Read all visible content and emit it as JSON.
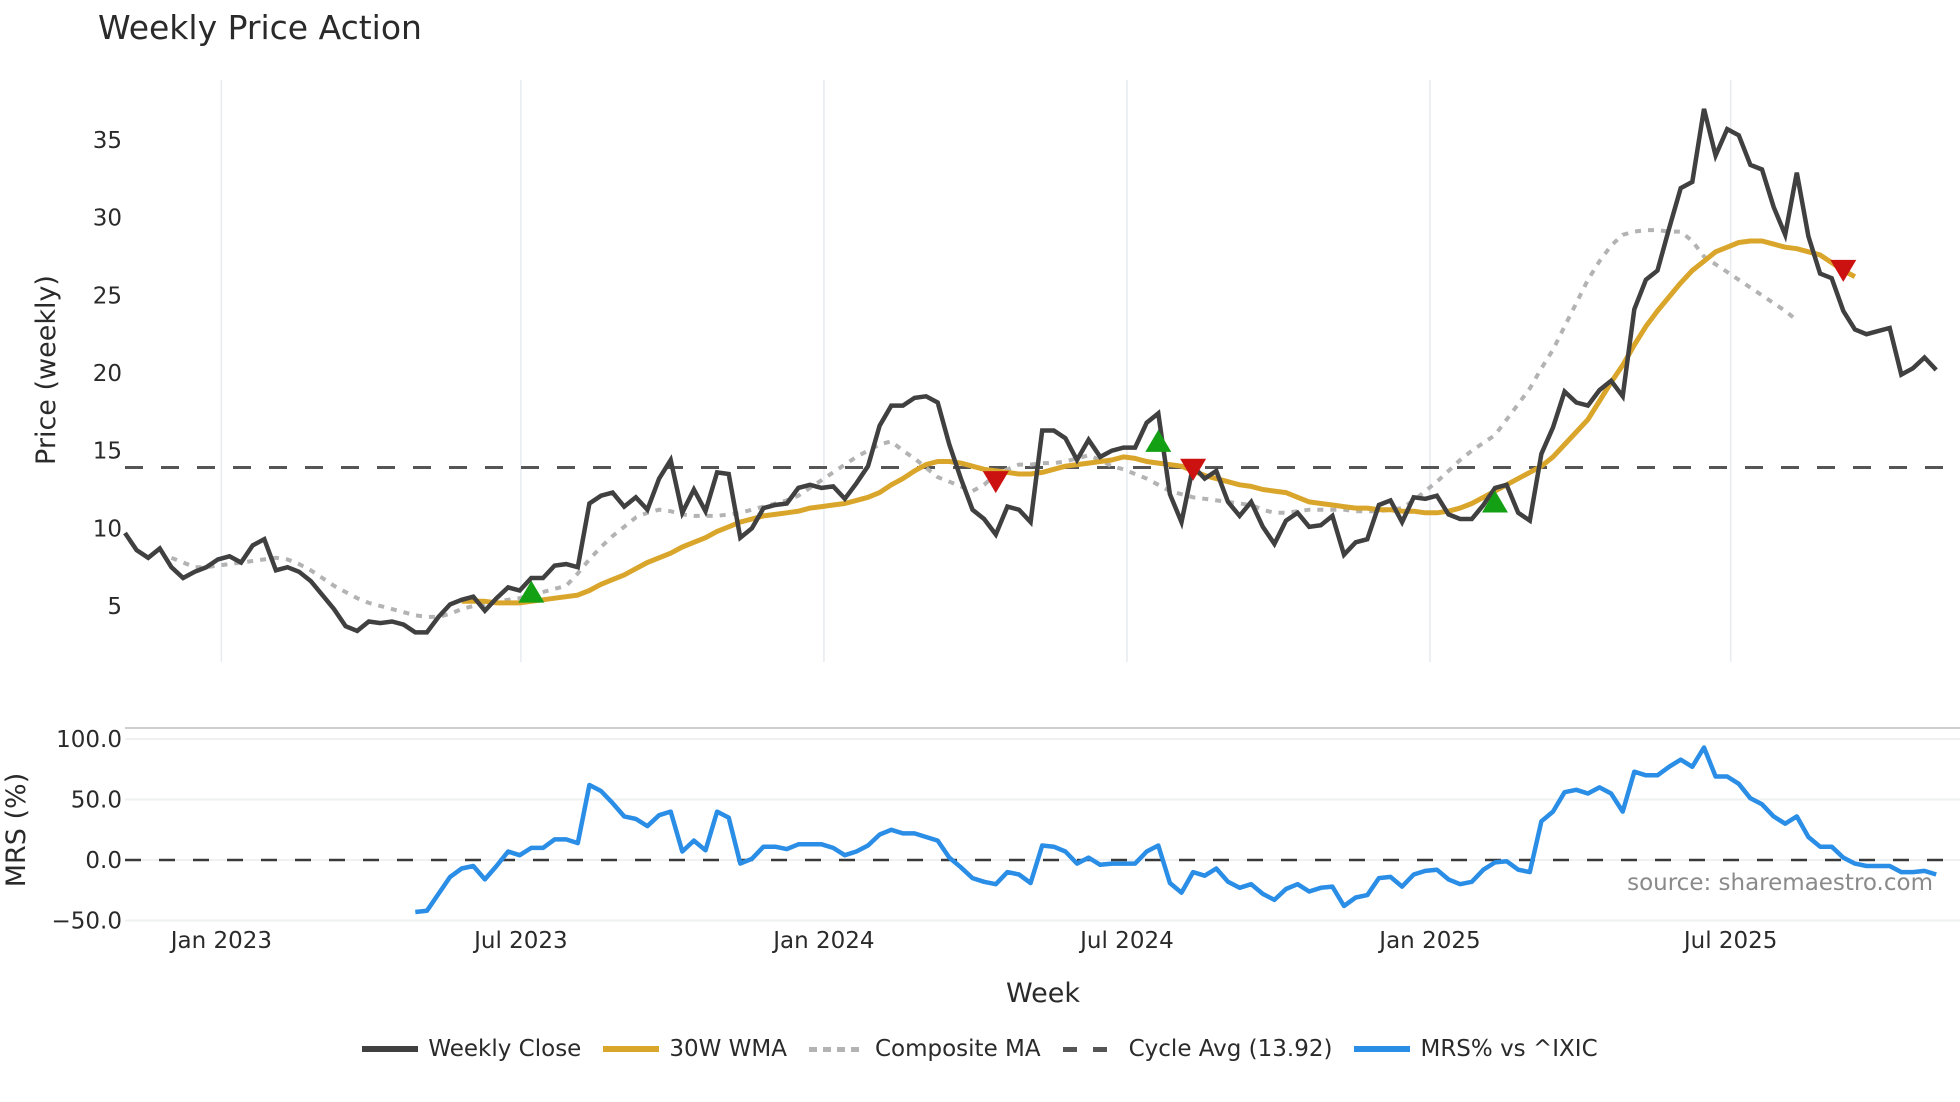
{
  "title": "Weekly Price Action",
  "source_note": "source: sharemaestro.com",
  "colors": {
    "close": "#404040",
    "wma": "#d9a62b",
    "composite": "#b3b3b3",
    "cycle": "#555555",
    "mrs": "#2a8de6",
    "buy": "#14a014",
    "sell": "#cc1111",
    "grid": "#e6ebef"
  },
  "legend": [
    {
      "key": "close",
      "label": "Weekly Close"
    },
    {
      "key": "wma",
      "label": "30W WMA"
    },
    {
      "key": "composite",
      "label": "Composite MA"
    },
    {
      "key": "cycle",
      "label": "Cycle Avg (13.92)"
    },
    {
      "key": "mrs",
      "label": "MRS% vs ^IXIC"
    }
  ],
  "chart_data": [
    {
      "type": "line",
      "title": "Weekly Price Action",
      "xlabel": "Week",
      "ylabel": "Price (weekly)",
      "x_tick_labels": [
        "Jan 2023",
        "Jul 2023",
        "Jan 2024",
        "Jul 2024",
        "Jan 2025",
        "Jul 2025"
      ],
      "x_tick_week_index": [
        8.3,
        34.1,
        60.2,
        86.3,
        112.4,
        138.3
      ],
      "y_ticks": [
        5,
        10,
        15,
        20,
        25,
        30,
        35
      ],
      "ylim": [
        1.5,
        38.5
      ],
      "grid": "vertical",
      "legend_position": "bottom",
      "cycle_avg": 13.92,
      "series": [
        {
          "name": "Weekly Close",
          "start_index": 0,
          "values": [
            9.7,
            8.6,
            8.1,
            8.7,
            7.5,
            6.8,
            7.2,
            7.5,
            8.0,
            8.2,
            7.8,
            8.9,
            9.3,
            7.3,
            7.5,
            7.2,
            6.6,
            5.7,
            4.8,
            3.7,
            3.4,
            4.0,
            3.9,
            4.0,
            3.8,
            3.3,
            3.3,
            4.3,
            5.1,
            5.4,
            5.6,
            4.7,
            5.5,
            6.2,
            6.0,
            6.8,
            6.8,
            7.6,
            7.7,
            7.5,
            11.6,
            12.1,
            12.3,
            11.4,
            12.0,
            11.2,
            13.2,
            14.4,
            11.0,
            12.5,
            11.1,
            13.6,
            13.5,
            9.4,
            10.0,
            11.3,
            11.5,
            11.6,
            12.6,
            12.8,
            12.6,
            12.7,
            11.9,
            12.9,
            14.0,
            16.6,
            17.9,
            17.9,
            18.4,
            18.5,
            18.1,
            15.4,
            13.2,
            11.2,
            10.6,
            9.6,
            11.4,
            11.2,
            10.4,
            16.3,
            16.3,
            15.8,
            14.4,
            15.7,
            14.6,
            15.0,
            15.2,
            15.2,
            16.8,
            17.4,
            12.2,
            10.4,
            14.0,
            13.2,
            13.7,
            11.7,
            10.8,
            11.7,
            10.1,
            9.0,
            10.5,
            11.0,
            10.1,
            10.2,
            10.8,
            8.3,
            9.1,
            9.3,
            11.5,
            11.8,
            10.4,
            12.0,
            11.9,
            12.1,
            10.9,
            10.6,
            10.6,
            11.5,
            12.6,
            12.8,
            11.0,
            10.5,
            14.8,
            16.5,
            18.8,
            18.1,
            17.9,
            18.9,
            19.5,
            18.5,
            24.1,
            26.0,
            26.6,
            29.3,
            31.9,
            32.3,
            37.0,
            34.0,
            35.7,
            35.3,
            33.4,
            33.1,
            30.7,
            28.9,
            32.9,
            28.8,
            26.4,
            26.1,
            24.0,
            22.8,
            22.5,
            22.7,
            22.9,
            19.9,
            20.3,
            21.0,
            20.2
          ]
        },
        {
          "name": "30W WMA",
          "start_index": 29,
          "values": [
            5.3,
            5.3,
            5.3,
            5.2,
            5.2,
            5.2,
            5.3,
            5.4,
            5.5,
            5.6,
            5.7,
            6.0,
            6.4,
            6.7,
            7.0,
            7.4,
            7.8,
            8.1,
            8.4,
            8.8,
            9.1,
            9.4,
            9.8,
            10.1,
            10.4,
            10.6,
            10.8,
            10.9,
            11.0,
            11.1,
            11.3,
            11.4,
            11.5,
            11.6,
            11.8,
            12.0,
            12.3,
            12.8,
            13.2,
            13.7,
            14.1,
            14.3,
            14.3,
            14.2,
            14.0,
            13.8,
            13.7,
            13.6,
            13.5,
            13.5,
            13.6,
            13.8,
            14.0,
            14.1,
            14.2,
            14.3,
            14.4,
            14.6,
            14.5,
            14.3,
            14.2,
            14.1,
            14.0,
            13.7,
            13.4,
            13.2,
            13.0,
            12.8,
            12.7,
            12.5,
            12.4,
            12.3,
            12.0,
            11.7,
            11.6,
            11.5,
            11.4,
            11.3,
            11.3,
            11.2,
            11.2,
            11.1,
            11.1,
            11.0,
            11.0,
            11.1,
            11.3,
            11.6,
            12.0,
            12.4,
            12.8,
            13.2,
            13.6,
            14.0,
            14.6,
            15.4,
            16.2,
            17.0,
            18.2,
            19.4,
            20.5,
            21.8,
            23.0,
            24.0,
            24.9,
            25.8,
            26.6,
            27.2,
            27.8,
            28.1,
            28.4,
            28.5,
            28.5,
            28.3,
            28.1,
            28.0,
            27.8,
            27.6,
            27.1,
            26.6,
            26.2
          ]
        },
        {
          "name": "Composite MA",
          "start_index": 4,
          "values": [
            8.1,
            7.8,
            7.5,
            7.5,
            7.6,
            7.7,
            7.8,
            7.9,
            8.0,
            8.1,
            8.0,
            7.7,
            7.3,
            6.8,
            6.3,
            5.9,
            5.5,
            5.2,
            5.0,
            4.8,
            4.6,
            4.4,
            4.3,
            4.3,
            4.5,
            4.8,
            5.0,
            5.1,
            5.3,
            5.4,
            5.5,
            5.7,
            5.9,
            6.1,
            6.3,
            7.1,
            8.0,
            8.8,
            9.5,
            10.1,
            10.7,
            11.0,
            11.2,
            11.1,
            10.9,
            10.8,
            10.8,
            10.8,
            10.9,
            11.0,
            11.2,
            11.4,
            11.6,
            11.8,
            12.1,
            12.6,
            13.1,
            13.6,
            14.1,
            14.6,
            15.0,
            15.4,
            15.6,
            15.0,
            14.5,
            13.9,
            13.3,
            13.0,
            12.7,
            12.4,
            12.8,
            13.5,
            13.8,
            14.1,
            14.1,
            14.2,
            14.2,
            14.3,
            14.5,
            14.7,
            14.4,
            14.0,
            13.8,
            13.5,
            13.2,
            12.8,
            12.4,
            12.2,
            12.0,
            11.9,
            11.8,
            11.7,
            11.6,
            11.5,
            11.2,
            11.0,
            11.0,
            11.1,
            11.2,
            11.2,
            11.2,
            11.2,
            11.1,
            11.1,
            11.1,
            11.2,
            11.3,
            11.8,
            12.4,
            13.0,
            13.7,
            14.4,
            15.0,
            15.5,
            16.0,
            17.0,
            18.0,
            19.0,
            20.3,
            21.5,
            23.0,
            24.5,
            26.0,
            27.2,
            28.2,
            28.9,
            29.1,
            29.2,
            29.2,
            29.1,
            29.1,
            28.5,
            27.5,
            27.0,
            26.5,
            26.0,
            25.5,
            25.0,
            24.5,
            24.0,
            23.4
          ]
        },
        {
          "name": "Cycle Avg (13.92)",
          "constant": 13.92
        }
      ],
      "markers": [
        {
          "type": "buy",
          "week_index": 35,
          "value": 5.8
        },
        {
          "type": "sell",
          "week_index": 75,
          "value": 13.1
        },
        {
          "type": "buy",
          "week_index": 89,
          "value": 15.5
        },
        {
          "type": "sell",
          "week_index": 92,
          "value": 13.9
        },
        {
          "type": "buy",
          "week_index": 118,
          "value": 11.6
        },
        {
          "type": "sell",
          "week_index": 148,
          "value": 26.7
        }
      ]
    },
    {
      "type": "line",
      "title": "",
      "xlabel": "Week",
      "ylabel": "MRS (%)",
      "y_ticks": [
        -50.0,
        0.0,
        50.0,
        100.0
      ],
      "ylim": [
        -58,
        110
      ],
      "zero_line": 0.0,
      "series": [
        {
          "name": "MRS% vs ^IXIC",
          "start_index": 25,
          "values": [
            -43,
            -42,
            -28,
            -14,
            -7,
            -5,
            -16,
            -5,
            7,
            4,
            10,
            10,
            17,
            17,
            14,
            62,
            57,
            47,
            36,
            34,
            28,
            37,
            40,
            7,
            16,
            8,
            40,
            35,
            -3,
            1,
            11,
            11,
            9,
            13,
            13,
            13,
            10,
            4,
            7,
            12,
            21,
            25,
            22,
            22,
            19,
            16,
            2,
            -6,
            -15,
            -18,
            -20,
            -10,
            -12,
            -19,
            12,
            11,
            7,
            -3,
            2,
            -4,
            -3,
            -3,
            -3,
            7,
            12,
            -19,
            -27,
            -10,
            -13,
            -7,
            -18,
            -23,
            -20,
            -28,
            -33,
            -24,
            -20,
            -26,
            -23,
            -22,
            -38,
            -31,
            -29,
            -15,
            -14,
            -22,
            -12,
            -9,
            -8,
            -16,
            -20,
            -18,
            -8,
            -2,
            -1,
            -8,
            -10,
            32,
            40,
            56,
            58,
            55,
            60,
            55,
            40,
            73,
            70,
            70,
            77,
            83,
            77,
            93,
            69,
            69,
            63,
            51,
            46,
            36,
            30,
            36,
            19,
            11,
            11,
            2,
            -3,
            -5,
            -5,
            -5,
            -10,
            -10,
            -9,
            -12
          ]
        }
      ]
    }
  ]
}
